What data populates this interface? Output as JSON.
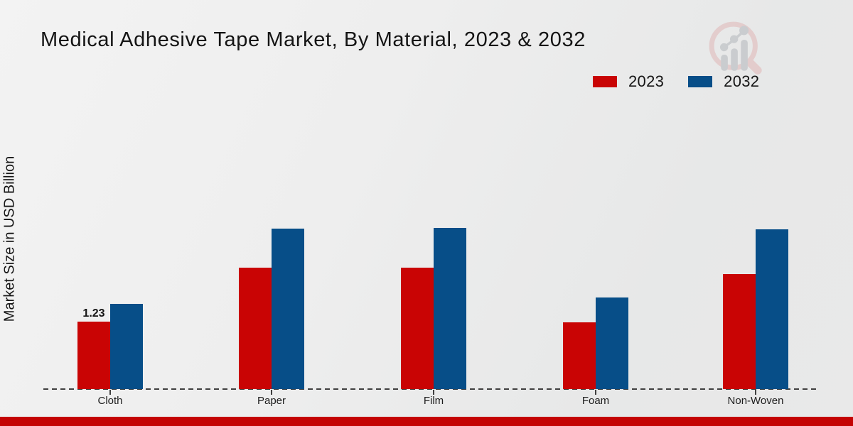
{
  "title": "Medical Adhesive Tape Market, By Material, 2023 & 2032",
  "y_axis_label": "Market Size in USD Billion",
  "legend": [
    {
      "label": "2023",
      "color": "#c90404"
    },
    {
      "label": "2032",
      "color": "#074e88"
    }
  ],
  "chart_data": {
    "type": "bar",
    "title": "Medical Adhesive Tape Market, By Material, 2023 & 2032",
    "categories": [
      "Cloth",
      "Paper",
      "Film",
      "Foam",
      "Non-Woven"
    ],
    "series": [
      {
        "name": "2023",
        "color": "#c90404",
        "values": [
          1.23,
          2.21,
          2.21,
          1.22,
          2.1
        ]
      },
      {
        "name": "2032",
        "color": "#074e88",
        "values": [
          1.55,
          2.93,
          2.94,
          1.67,
          2.91
        ]
      }
    ],
    "bar_labels": [
      {
        "series_index": 0,
        "category_index": 0,
        "text": "1.23"
      }
    ],
    "xlabel": "",
    "ylabel": "Market Size in USD Billion",
    "y_axis_ticks_visible": false,
    "grid": false,
    "baseline_style": "dashed",
    "legend_position": "top-right"
  },
  "watermark_icon": "magnifier-bar-chart-logo",
  "watermark_colors": {
    "ring": "#e3caca",
    "bars": "#c7cacd"
  },
  "footer": {
    "bar_color": "#c40303"
  }
}
